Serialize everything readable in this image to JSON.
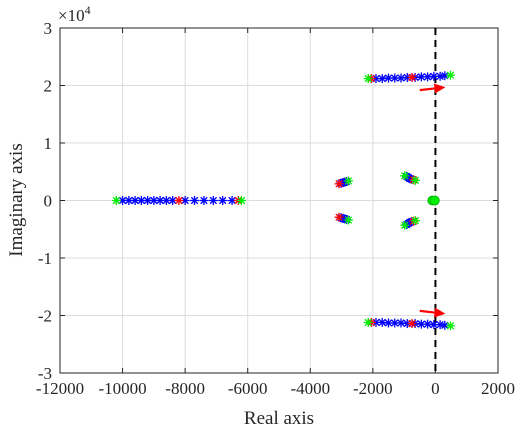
{
  "chart_data": {
    "type": "scatter",
    "title": "",
    "xlabel": "Real axis",
    "ylabel": "Imaginary axis",
    "xlim": [
      -12000,
      2000
    ],
    "ylim": [
      -3,
      3
    ],
    "y_exponent_label": "×10",
    "y_exponent_power": "4",
    "xticks": [
      -12000,
      -10000,
      -8000,
      -6000,
      -4000,
      -2000,
      0,
      2000
    ],
    "xtick_labels": [
      "-12000",
      "-10000",
      "-8000",
      "-6000",
      "-4000",
      "-2000",
      "0",
      "2000"
    ],
    "yticks": [
      -3,
      -2,
      -1,
      0,
      1,
      2,
      3
    ],
    "ytick_labels": [
      "-3",
      "-2",
      "-1",
      "0",
      "1",
      "2",
      "3"
    ],
    "grid": true,
    "colors": {
      "blue": "#0000ff",
      "red": "#ff0000",
      "green": "#00ee00",
      "arrow": "#ff0000",
      "vline": "#000000",
      "grid": "#dcdcdc"
    },
    "series": [
      {
        "color": "blue",
        "marker": "asterisk",
        "points": [
          [
            -10000,
            0
          ],
          [
            -9800,
            0
          ],
          [
            -9600,
            0
          ],
          [
            -9400,
            0
          ],
          [
            -9200,
            0
          ],
          [
            -9000,
            0
          ],
          [
            -8800,
            0
          ],
          [
            -8600,
            0
          ],
          [
            -8400,
            0
          ],
          [
            -8000,
            0
          ],
          [
            -7700,
            0
          ],
          [
            -7400,
            0
          ],
          [
            -7100,
            0
          ],
          [
            -6800,
            0
          ],
          [
            -6500,
            0
          ],
          [
            -3020,
            0.3
          ],
          [
            -2960,
            0.31
          ],
          [
            -2900,
            0.32
          ],
          [
            -2840,
            0.33
          ],
          [
            -3020,
            -0.3
          ],
          [
            -2960,
            -0.31
          ],
          [
            -2900,
            -0.32
          ],
          [
            -2840,
            -0.33
          ],
          [
            -920,
            0.42
          ],
          [
            -870,
            0.4
          ],
          [
            -820,
            0.38
          ],
          [
            -770,
            0.37
          ],
          [
            -920,
            -0.42
          ],
          [
            -870,
            -0.4
          ],
          [
            -820,
            -0.38
          ],
          [
            -770,
            -0.37
          ],
          [
            -1900,
            2.12
          ],
          [
            -1700,
            2.12
          ],
          [
            -1500,
            2.13
          ],
          [
            -1300,
            2.13
          ],
          [
            -1100,
            2.13
          ],
          [
            -900,
            2.14
          ],
          [
            -650,
            2.14
          ],
          [
            -450,
            2.15
          ],
          [
            -250,
            2.15
          ],
          [
            -50,
            2.16
          ],
          [
            150,
            2.16
          ],
          [
            300,
            2.17
          ],
          [
            -1900,
            -2.12
          ],
          [
            -1700,
            -2.12
          ],
          [
            -1500,
            -2.13
          ],
          [
            -1300,
            -2.13
          ],
          [
            -1100,
            -2.13
          ],
          [
            -900,
            -2.14
          ],
          [
            -650,
            -2.14
          ],
          [
            -450,
            -2.15
          ],
          [
            -250,
            -2.15
          ],
          [
            -50,
            -2.16
          ],
          [
            150,
            -2.16
          ],
          [
            300,
            -2.17
          ]
        ]
      },
      {
        "color": "red",
        "marker": "asterisk",
        "points": [
          [
            -8200,
            0
          ],
          [
            -6300,
            0
          ],
          [
            -3080,
            0.29
          ],
          [
            -3080,
            -0.29
          ],
          [
            -700,
            0.36
          ],
          [
            -700,
            -0.36
          ],
          [
            -2050,
            2.12
          ],
          [
            -2050,
            -2.12
          ],
          [
            -750,
            2.14
          ],
          [
            -750,
            -2.14
          ]
        ]
      },
      {
        "color": "green",
        "marker": "asterisk",
        "points": [
          [
            -10200,
            0
          ],
          [
            -6200,
            0
          ],
          [
            -2780,
            0.34
          ],
          [
            -2780,
            -0.34
          ],
          [
            -980,
            0.43
          ],
          [
            -980,
            -0.43
          ],
          [
            -640,
            0.35
          ],
          [
            -640,
            -0.35
          ],
          [
            -2150,
            2.12
          ],
          [
            -2150,
            -2.12
          ],
          [
            480,
            2.18
          ],
          [
            480,
            -2.18
          ]
        ]
      },
      {
        "color": "green",
        "marker": "circle",
        "points": [
          [
            -100,
            0
          ],
          [
            -20,
            0
          ]
        ]
      }
    ],
    "arrows": [
      {
        "from": [
          -500,
          1.92
        ],
        "to": [
          320,
          1.97
        ]
      },
      {
        "from": [
          -500,
          -1.92
        ],
        "to": [
          320,
          -1.97
        ]
      }
    ],
    "vline": {
      "x": 0,
      "style": "dashed"
    }
  }
}
